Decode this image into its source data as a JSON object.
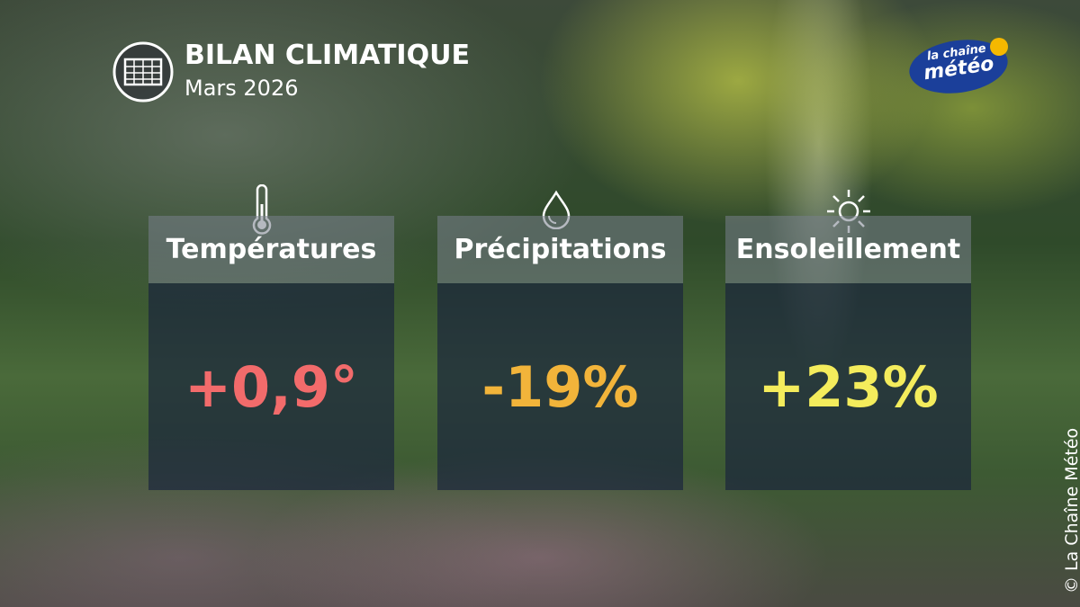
{
  "header": {
    "title": "BILAN CLIMATIQUE",
    "subtitle": "Mars 2026"
  },
  "logo": {
    "line1": "la chaîne",
    "line2": "météo"
  },
  "cards": [
    {
      "label": "Températures",
      "value": "+0,9°"
    },
    {
      "label": "Précipitations",
      "value": "-19%"
    },
    {
      "label": "Ensoleillement",
      "value": "+23%"
    }
  ],
  "copyright": "© La Chaîne Météo"
}
